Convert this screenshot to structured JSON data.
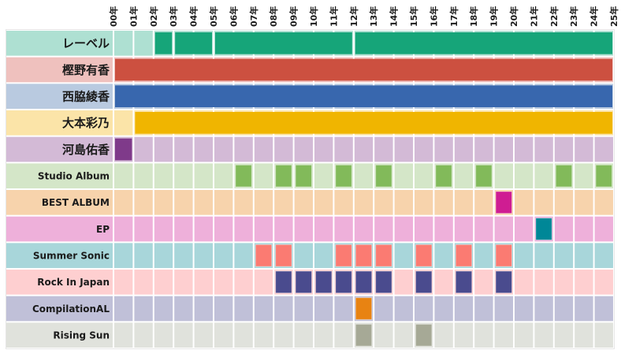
{
  "chart_data": {
    "type": "heatmap",
    "title": "",
    "x_ticks": [
      "00年",
      "01年",
      "02年",
      "03年",
      "04年",
      "05年",
      "06年",
      "07年",
      "08年",
      "09年",
      "10年",
      "11年",
      "12年",
      "13年",
      "14年",
      "15年",
      "16年",
      "17年",
      "18年",
      "19年",
      "20年",
      "21年",
      "22年",
      "23年",
      "24年",
      "25年"
    ],
    "xlim": [
      0,
      25
    ],
    "grid": true,
    "rows": [
      {
        "name": "レーベル",
        "bg": "#aee0d2",
        "color": "#16a579",
        "label_size": "large",
        "segments": [
          [
            2,
            3
          ],
          [
            3,
            5
          ],
          [
            5,
            12
          ],
          [
            12,
            25
          ]
        ]
      },
      {
        "name": "樫野有香",
        "bg": "#efc1be",
        "color": "#cc5040",
        "label_size": "large",
        "segments": [
          [
            0,
            25
          ]
        ]
      },
      {
        "name": "西脇綾香",
        "bg": "#b9cae0",
        "color": "#3867ae",
        "label_size": "large",
        "segments": [
          [
            0,
            25
          ]
        ]
      },
      {
        "name": "大本彩乃",
        "bg": "#fbe4a8",
        "color": "#f0b500",
        "label_size": "large",
        "segments": [
          [
            1,
            25
          ]
        ]
      },
      {
        "name": "河島佑香",
        "bg": "#d3bad6",
        "color": "#7f3a8a",
        "label_size": "large",
        "segments": [
          [
            0,
            1
          ]
        ]
      },
      {
        "name": "Studio Album",
        "bg": "#d4e6c8",
        "color": "#82ba5a",
        "label_size": "small",
        "cells": [
          6,
          8,
          9,
          11,
          13,
          16,
          18,
          22,
          24
        ]
      },
      {
        "name": "BEST ALBUM",
        "bg": "#f7d3ac",
        "color": "#cf1d92",
        "label_size": "small",
        "cells": [
          19
        ]
      },
      {
        "name": "EP",
        "bg": "#eeb0da",
        "color": "#008797",
        "label_size": "small",
        "cells": [
          21
        ]
      },
      {
        "name": "Summer Sonic",
        "bg": "#a8d6da",
        "color": "#fb7b72",
        "label_size": "small",
        "cells": [
          7,
          8,
          11,
          12,
          13,
          15,
          17,
          19
        ]
      },
      {
        "name": "Rock In Japan",
        "bg": "#fecfd0",
        "color": "#4a4b8e",
        "label_size": "small",
        "cells": [
          8,
          9,
          10,
          11,
          12,
          13,
          15,
          17,
          19
        ]
      },
      {
        "name": "CompilationAL",
        "bg": "#c0c0d8",
        "color": "#e88312",
        "label_size": "small",
        "cells": [
          12
        ]
      },
      {
        "name": "Rising Sun",
        "bg": "#e0e2dc",
        "color": "#a6a996",
        "label_size": "small",
        "cells": [
          12,
          15
        ]
      }
    ]
  }
}
